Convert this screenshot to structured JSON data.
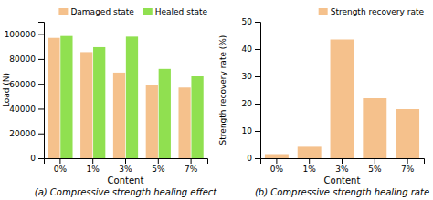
{
  "chart_data": [
    {
      "type": "bar",
      "title": "(a) Compressive strength healing effect",
      "xlabel": "Content",
      "ylabel": "Load (N)",
      "categories": [
        "0%",
        "1%",
        "3%",
        "5%",
        "7%"
      ],
      "series": [
        {
          "name": "Damaged state",
          "color": "#F5C18C",
          "values": [
            97000,
            85500,
            69000,
            59000,
            57000
          ]
        },
        {
          "name": "Healed state",
          "color": "#90E050",
          "values": [
            98500,
            89500,
            98000,
            72000,
            66000
          ]
        }
      ],
      "ylim": [
        0,
        110000
      ],
      "yticks": [
        0,
        20000,
        40000,
        60000,
        80000,
        100000
      ],
      "legend": "upper right"
    },
    {
      "type": "bar",
      "title": "(b) Compressive strength healing rate",
      "xlabel": "Content",
      "ylabel": "Strength recovery rate (%)",
      "categories": [
        "0%",
        "1%",
        "3%",
        "5%",
        "7%"
      ],
      "series": [
        {
          "name": "Strength recovery rate",
          "color": "#F5C18C",
          "values": [
            1.5,
            4.2,
            43.5,
            22.0,
            18.0
          ]
        }
      ],
      "ylim": [
        0,
        50
      ],
      "yticks": [
        0,
        10,
        20,
        30,
        40,
        50
      ],
      "legend": "upper right"
    }
  ]
}
